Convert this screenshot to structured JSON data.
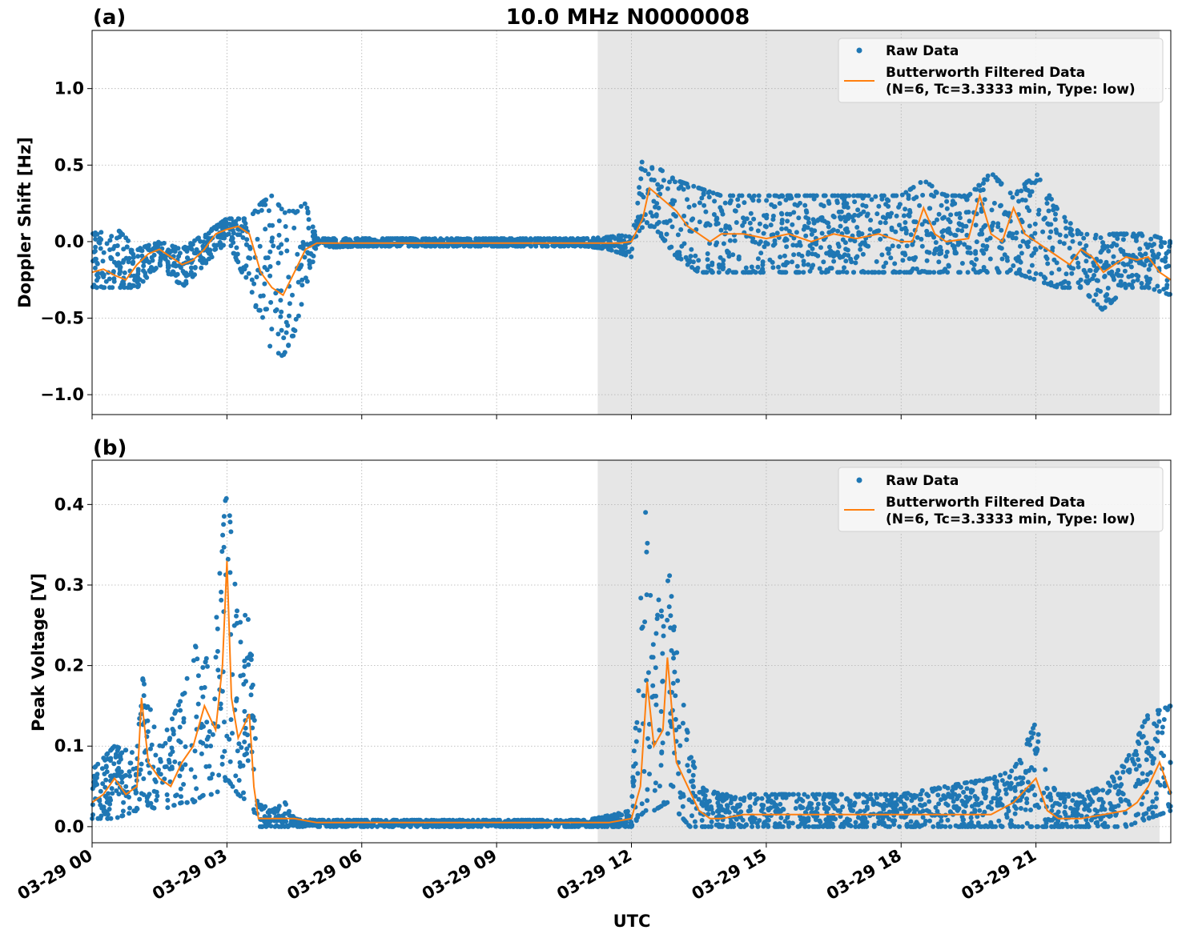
{
  "title": "10.0 MHz N0000008",
  "xlabel": "UTC",
  "x_ticks": [
    "03-29 00",
    "03-29 03",
    "03-29 06",
    "03-29 09",
    "03-29 12",
    "03-29 15",
    "03-29 18",
    "03-29 21"
  ],
  "x_range_hours": [
    0,
    24
  ],
  "shade_region_hours": [
    11.25,
    23.75
  ],
  "colors": {
    "raw": "#1f77b4",
    "filtered": "#ff7f0e",
    "shade": "#e6e6e6",
    "grid": "#b0b0b0"
  },
  "legend": {
    "raw_label": "Raw Data",
    "filtered_label_line1": "Butterworth Filtered Data",
    "filtered_label_line2": "(N=6, Tc=3.3333 min, Type: low)",
    "placement": "top-right"
  },
  "chart_data": [
    {
      "panel_label": "(a)",
      "type": "scatter",
      "ylabel": "Doppler Shift [Hz]",
      "ylim": [
        -1.13,
        1.38
      ],
      "y_ticks": [
        -1.0,
        -0.5,
        0.0,
        0.5,
        1.0
      ],
      "y_tick_labels": [
        "−1.0",
        "−0.5",
        "0.0",
        "0.5",
        "1.0"
      ],
      "grid": true,
      "series": [
        {
          "name": "Butterworth Filtered Data",
          "kind": "line",
          "x": [
            0,
            0.25,
            0.5,
            0.75,
            1,
            1.25,
            1.5,
            1.75,
            2,
            2.25,
            2.5,
            2.75,
            3,
            3.25,
            3.5,
            3.75,
            4,
            4.25,
            4.5,
            4.75,
            5,
            5.5,
            6,
            7,
            8,
            9,
            10,
            11,
            11.5,
            11.75,
            12,
            12.25,
            12.4,
            12.6,
            12.8,
            13,
            13.25,
            13.5,
            13.75,
            14,
            14.5,
            15,
            15.5,
            16,
            16.5,
            17,
            17.5,
            18,
            18.25,
            18.5,
            18.75,
            19,
            19.5,
            19.75,
            20,
            20.25,
            20.5,
            20.75,
            21,
            21.25,
            21.5,
            21.75,
            22,
            22.25,
            22.5,
            22.75,
            23,
            23.25,
            23.5,
            23.75,
            24
          ],
          "y": [
            -0.2,
            -0.18,
            -0.22,
            -0.25,
            -0.15,
            -0.08,
            -0.05,
            -0.1,
            -0.15,
            -0.12,
            -0.05,
            0.05,
            0.08,
            0.1,
            0.05,
            -0.2,
            -0.3,
            -0.35,
            -0.2,
            -0.05,
            -0.01,
            -0.01,
            -0.01,
            -0.01,
            -0.01,
            -0.01,
            -0.01,
            -0.01,
            -0.01,
            -0.01,
            0.0,
            0.15,
            0.35,
            0.3,
            0.25,
            0.2,
            0.1,
            0.05,
            0.0,
            0.05,
            0.05,
            0.02,
            0.05,
            0.0,
            0.05,
            0.02,
            0.05,
            0.0,
            0.0,
            0.22,
            0.05,
            0.0,
            0.02,
            0.3,
            0.05,
            0.0,
            0.22,
            0.05,
            0.0,
            -0.05,
            -0.1,
            -0.15,
            -0.05,
            -0.1,
            -0.2,
            -0.15,
            -0.1,
            -0.12,
            -0.1,
            -0.2,
            -0.25
          ]
        },
        {
          "name": "Raw Data",
          "kind": "points",
          "envelope_x": [
            0,
            0.5,
            1,
            1.5,
            2,
            2.5,
            3,
            3.5,
            3.75,
            4,
            4.25,
            4.5,
            4.75,
            5,
            6,
            7,
            8,
            9,
            10,
            11,
            11.5,
            12,
            12.25,
            12.5,
            13,
            13.5,
            14,
            15,
            16,
            17,
            18,
            18.5,
            19,
            19.5,
            20,
            20.5,
            21,
            21.5,
            22,
            22.5,
            23,
            23.5,
            24
          ],
          "envelope_low": [
            -0.3,
            -0.3,
            -0.3,
            -0.15,
            -0.3,
            -0.15,
            0.0,
            -0.3,
            -0.6,
            -0.7,
            -0.75,
            -0.6,
            -0.3,
            -0.04,
            -0.03,
            -0.03,
            -0.03,
            -0.03,
            -0.03,
            -0.03,
            -0.05,
            -0.1,
            0.1,
            0.1,
            -0.1,
            -0.2,
            -0.2,
            -0.2,
            -0.2,
            -0.2,
            -0.2,
            -0.2,
            -0.2,
            -0.2,
            -0.2,
            -0.2,
            -0.25,
            -0.3,
            -0.3,
            -0.45,
            -0.3,
            -0.3,
            -0.35
          ],
          "envelope_high": [
            0.05,
            0.1,
            -0.05,
            0.0,
            -0.05,
            0.05,
            0.15,
            0.15,
            0.25,
            0.3,
            0.2,
            0.2,
            0.25,
            0.02,
            0.02,
            0.02,
            0.02,
            0.02,
            0.02,
            0.02,
            0.03,
            0.05,
            0.55,
            0.5,
            0.4,
            0.35,
            0.3,
            0.3,
            0.3,
            0.3,
            0.3,
            0.4,
            0.3,
            0.3,
            0.45,
            0.3,
            0.45,
            0.2,
            0.05,
            0.05,
            0.05,
            0.05,
            0.0
          ]
        }
      ]
    },
    {
      "panel_label": "(b)",
      "type": "scatter",
      "ylabel": "Peak Voltage [V]",
      "ylim": [
        -0.02,
        0.455
      ],
      "y_ticks": [
        0.0,
        0.1,
        0.2,
        0.3,
        0.4
      ],
      "y_tick_labels": [
        "0.0",
        "0.1",
        "0.2",
        "0.3",
        "0.4"
      ],
      "grid": true,
      "series": [
        {
          "name": "Butterworth Filtered Data",
          "kind": "line",
          "x": [
            0,
            0.25,
            0.5,
            0.75,
            1,
            1.1,
            1.25,
            1.5,
            1.75,
            2,
            2.25,
            2.5,
            2.75,
            2.9,
            3,
            3.1,
            3.25,
            3.5,
            3.6,
            3.7,
            3.8,
            4,
            4.3,
            4.5,
            5,
            6,
            7,
            8,
            9,
            10,
            11,
            11.5,
            12,
            12.2,
            12.35,
            12.5,
            12.7,
            12.8,
            13,
            13.25,
            13.5,
            13.75,
            14,
            14.5,
            15,
            16,
            17,
            18,
            19,
            20,
            20.5,
            21,
            21.25,
            21.5,
            22,
            22.5,
            23,
            23.25,
            23.5,
            23.75,
            24
          ],
          "y": [
            0.03,
            0.04,
            0.06,
            0.04,
            0.05,
            0.16,
            0.08,
            0.06,
            0.05,
            0.08,
            0.1,
            0.15,
            0.12,
            0.2,
            0.33,
            0.16,
            0.11,
            0.14,
            0.05,
            0.01,
            0.01,
            0.01,
            0.01,
            0.01,
            0.005,
            0.005,
            0.005,
            0.005,
            0.005,
            0.005,
            0.005,
            0.005,
            0.01,
            0.05,
            0.18,
            0.1,
            0.12,
            0.21,
            0.08,
            0.05,
            0.02,
            0.01,
            0.01,
            0.015,
            0.015,
            0.015,
            0.015,
            0.015,
            0.015,
            0.015,
            0.03,
            0.06,
            0.02,
            0.01,
            0.01,
            0.015,
            0.02,
            0.03,
            0.05,
            0.08,
            0.04
          ]
        },
        {
          "name": "Raw Data",
          "kind": "points",
          "envelope_x": [
            0,
            0.5,
            1,
            1.1,
            1.5,
            2,
            2.25,
            2.5,
            2.75,
            3,
            3.25,
            3.5,
            3.6,
            3.7,
            4,
            4.3,
            4.5,
            5,
            6,
            7,
            8,
            9,
            10,
            11,
            12,
            12.3,
            12.5,
            12.8,
            13,
            13.3,
            13.5,
            14,
            15,
            16,
            17,
            18,
            19,
            20,
            20.5,
            21,
            21.25,
            21.5,
            22,
            22.5,
            23,
            23.5,
            24
          ],
          "envelope_low": [
            0.01,
            0.01,
            0.02,
            0.03,
            0.02,
            0.03,
            0.03,
            0.04,
            0.04,
            0.06,
            0.04,
            0.03,
            0.02,
            0.0,
            0.0,
            0.0,
            0.0,
            0.0,
            0.0,
            0.0,
            0.0,
            0.0,
            0.0,
            0.0,
            0.0,
            0.02,
            0.02,
            0.03,
            0.02,
            0.0,
            0.0,
            0.0,
            0.0,
            0.0,
            0.0,
            0.0,
            0.0,
            0.0,
            0.0,
            0.0,
            0.0,
            0.0,
            0.0,
            0.0,
            0.0,
            0.01,
            0.02
          ],
          "envelope_high": [
            0.07,
            0.1,
            0.09,
            0.19,
            0.1,
            0.16,
            0.23,
            0.2,
            0.25,
            0.43,
            0.25,
            0.27,
            0.15,
            0.03,
            0.02,
            0.03,
            0.01,
            0.008,
            0.008,
            0.008,
            0.008,
            0.008,
            0.008,
            0.008,
            0.02,
            0.4,
            0.25,
            0.34,
            0.22,
            0.1,
            0.05,
            0.04,
            0.04,
            0.04,
            0.04,
            0.04,
            0.05,
            0.06,
            0.07,
            0.13,
            0.06,
            0.04,
            0.04,
            0.05,
            0.08,
            0.14,
            0.15
          ]
        }
      ]
    }
  ]
}
